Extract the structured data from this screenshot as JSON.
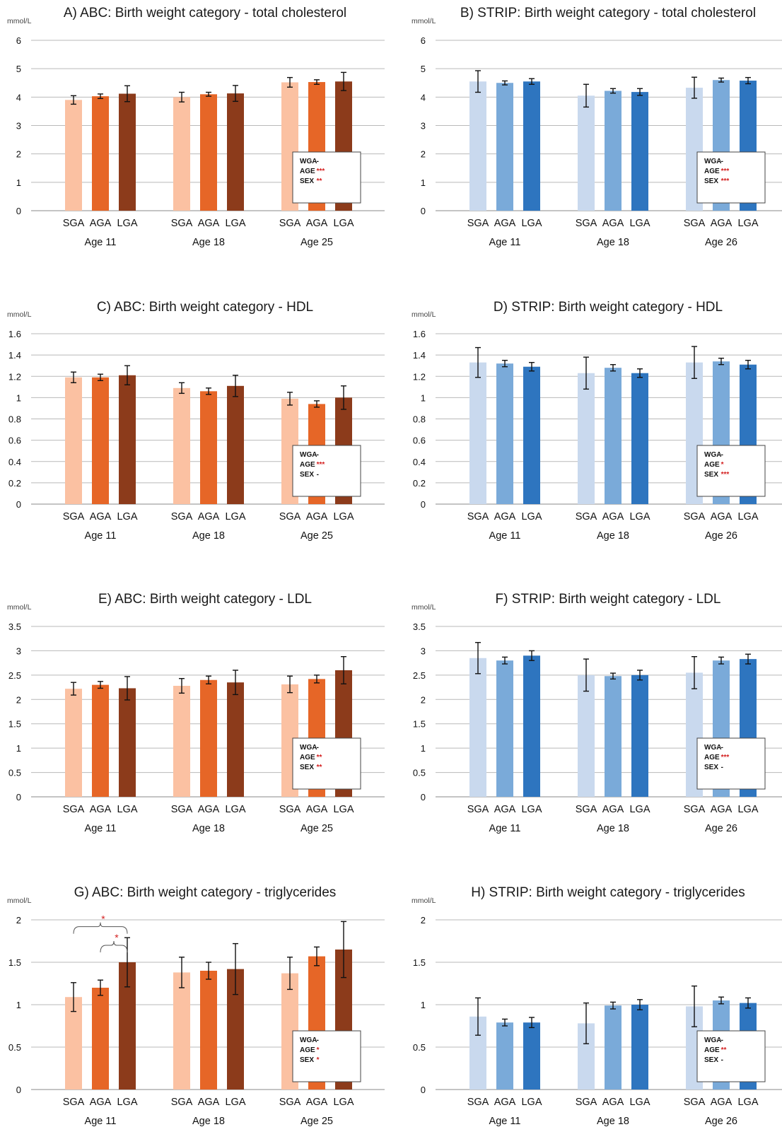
{
  "figure": {
    "colors": {
      "ABC": [
        "#fbc1a2",
        "#e66627",
        "#8c3b1b"
      ],
      "STRIP": [
        "#c9d9ee",
        "#7aaad9",
        "#2e75bf"
      ],
      "significance": "#d42020"
    },
    "box_labels": [
      "WGA",
      "AGA",
      "SEX"
    ]
  },
  "chart_data": [
    {
      "id": "A",
      "type": "bar",
      "title": "A) ABC: Birth weight category - total cholesterol",
      "ylabel": "mmol/L",
      "ylim": [
        0,
        6
      ],
      "yticks": [
        "0",
        "1",
        "2",
        "3",
        "4",
        "5",
        "6"
      ],
      "categories": [
        "SGA",
        "AGA",
        "LGA"
      ],
      "groups": [
        {
          "label": "Age 11",
          "values": [
            3.9,
            4.03,
            4.12
          ],
          "err": [
            0.15,
            0.08,
            0.28
          ]
        },
        {
          "label": "Age 18",
          "values": [
            4.0,
            4.1,
            4.13
          ],
          "err": [
            0.17,
            0.07,
            0.28
          ]
        },
        {
          "label": "Age 25",
          "values": [
            4.52,
            4.53,
            4.55
          ],
          "err": [
            0.17,
            0.08,
            0.32
          ]
        }
      ],
      "grid": true,
      "stats_box": [
        [
          "WGA",
          "-"
        ],
        [
          "AGE",
          "***"
        ],
        [
          "SEX",
          "**"
        ]
      ],
      "brackets": []
    },
    {
      "id": "B",
      "type": "bar",
      "title": "B) STRIP: Birth weight category - total cholesterol",
      "ylabel": "mmol/L",
      "ylim": [
        0,
        6
      ],
      "yticks": [
        "0",
        "1",
        "2",
        "3",
        "4",
        "5",
        "6"
      ],
      "categories": [
        "SGA",
        "AGA",
        "LGA"
      ],
      "groups": [
        {
          "label": "Age 11",
          "values": [
            4.55,
            4.5,
            4.55
          ],
          "err": [
            0.38,
            0.07,
            0.1
          ]
        },
        {
          "label": "Age 18",
          "values": [
            4.05,
            4.22,
            4.18
          ],
          "err": [
            0.4,
            0.08,
            0.12
          ]
        },
        {
          "label": "Age 26",
          "values": [
            4.33,
            4.6,
            4.58
          ],
          "err": [
            0.37,
            0.07,
            0.11
          ]
        }
      ],
      "grid": true,
      "stats_box": [
        [
          "WGA",
          "-"
        ],
        [
          "AGE",
          "***"
        ],
        [
          "SEX",
          "***"
        ]
      ],
      "brackets": []
    },
    {
      "id": "C",
      "type": "bar",
      "title": "C) ABC: Birth weight category - HDL",
      "ylabel": "mmol/L",
      "ylim": [
        0,
        1.6
      ],
      "yticks": [
        "0",
        "0.2",
        "0.4",
        "0.6",
        "0.8",
        "1",
        "1.2",
        "1.4",
        "1.6"
      ],
      "categories": [
        "SGA",
        "AGA",
        "LGA"
      ],
      "groups": [
        {
          "label": "Age 11",
          "values": [
            1.19,
            1.19,
            1.21
          ],
          "err": [
            0.05,
            0.03,
            0.09
          ]
        },
        {
          "label": "Age 18",
          "values": [
            1.09,
            1.06,
            1.11
          ],
          "err": [
            0.05,
            0.03,
            0.1
          ]
        },
        {
          "label": "Age 25",
          "values": [
            0.99,
            0.94,
            1.0
          ],
          "err": [
            0.06,
            0.03,
            0.11
          ]
        }
      ],
      "grid": true,
      "stats_box": [
        [
          "WGA",
          "-"
        ],
        [
          "AGE",
          "***"
        ],
        [
          "SEX",
          "-"
        ]
      ],
      "brackets": []
    },
    {
      "id": "D",
      "type": "bar",
      "title": "D) STRIP: Birth weight category - HDL",
      "ylabel": "mmol/L",
      "ylim": [
        0,
        1.6
      ],
      "yticks": [
        "0",
        "0.2",
        "0.4",
        "0.6",
        "0.8",
        "1",
        "1.2",
        "1.4",
        "1.6"
      ],
      "categories": [
        "SGA",
        "AGA",
        "LGA"
      ],
      "groups": [
        {
          "label": "Age 11",
          "values": [
            1.33,
            1.32,
            1.29
          ],
          "err": [
            0.14,
            0.03,
            0.04
          ]
        },
        {
          "label": "Age 18",
          "values": [
            1.23,
            1.28,
            1.23
          ],
          "err": [
            0.15,
            0.03,
            0.04
          ]
        },
        {
          "label": "Age 26",
          "values": [
            1.33,
            1.34,
            1.31
          ],
          "err": [
            0.15,
            0.03,
            0.04
          ]
        }
      ],
      "grid": true,
      "stats_box": [
        [
          "WGA",
          "-"
        ],
        [
          "AGE",
          "*"
        ],
        [
          "SEX",
          "***"
        ]
      ],
      "brackets": []
    },
    {
      "id": "E",
      "type": "bar",
      "title": "E) ABC: Birth weight category - LDL",
      "ylabel": "mmol/L",
      "ylim": [
        0,
        3.5
      ],
      "yticks": [
        "0",
        "0.5",
        "1",
        "1.5",
        "2",
        "2.5",
        "3",
        "3.5"
      ],
      "categories": [
        "SGA",
        "AGA",
        "LGA"
      ],
      "groups": [
        {
          "label": "Age 11",
          "values": [
            2.22,
            2.3,
            2.23
          ],
          "err": [
            0.13,
            0.07,
            0.24
          ]
        },
        {
          "label": "Age 18",
          "values": [
            2.28,
            2.4,
            2.35
          ],
          "err": [
            0.15,
            0.08,
            0.25
          ]
        },
        {
          "label": "Age 25",
          "values": [
            2.31,
            2.42,
            2.6
          ],
          "err": [
            0.17,
            0.08,
            0.28
          ]
        }
      ],
      "grid": true,
      "stats_box": [
        [
          "WGA",
          "-"
        ],
        [
          "AGE",
          "**"
        ],
        [
          "SEX",
          "**"
        ]
      ],
      "brackets": []
    },
    {
      "id": "F",
      "type": "bar",
      "title": "F) STRIP: Birth weight category - LDL",
      "ylabel": "mmol/L",
      "ylim": [
        0,
        3.5
      ],
      "yticks": [
        "0",
        "0.5",
        "1",
        "1.5",
        "2",
        "2.5",
        "3",
        "3.5"
      ],
      "categories": [
        "SGA",
        "AGA",
        "LGA"
      ],
      "groups": [
        {
          "label": "Age 11",
          "values": [
            2.85,
            2.8,
            2.9
          ],
          "err": [
            0.32,
            0.07,
            0.1
          ]
        },
        {
          "label": "Age 18",
          "values": [
            2.5,
            2.48,
            2.5
          ],
          "err": [
            0.33,
            0.06,
            0.1
          ]
        },
        {
          "label": "Age 26",
          "values": [
            2.55,
            2.8,
            2.83
          ],
          "err": [
            0.33,
            0.07,
            0.1
          ]
        }
      ],
      "grid": true,
      "stats_box": [
        [
          "WGA",
          "-"
        ],
        [
          "AGE",
          "***"
        ],
        [
          "SEX",
          "-"
        ]
      ],
      "brackets": []
    },
    {
      "id": "G",
      "type": "bar",
      "title": "G) ABC: Birth weight category - triglycerides",
      "ylabel": "mmol/L",
      "ylim": [
        0,
        2
      ],
      "yticks": [
        "0",
        "0.5",
        "1",
        "1.5",
        "2"
      ],
      "categories": [
        "SGA",
        "AGA",
        "LGA"
      ],
      "groups": [
        {
          "label": "Age 11",
          "values": [
            1.09,
            1.2,
            1.5
          ],
          "err": [
            0.17,
            0.09,
            0.29
          ]
        },
        {
          "label": "Age 18",
          "values": [
            1.38,
            1.4,
            1.42
          ],
          "err": [
            0.18,
            0.1,
            0.3
          ]
        },
        {
          "label": "Age 25",
          "values": [
            1.37,
            1.57,
            1.65
          ],
          "err": [
            0.19,
            0.11,
            0.33
          ]
        }
      ],
      "grid": true,
      "stats_box": [
        [
          "WGA",
          "-"
        ],
        [
          "AGE",
          "*"
        ],
        [
          "SEX",
          "*"
        ]
      ],
      "brackets": [
        {
          "group": 0,
          "from": 0,
          "to": 2,
          "label": "*",
          "level": 1.92
        },
        {
          "group": 0,
          "from": 1,
          "to": 2,
          "label": "*",
          "level": 1.7
        }
      ]
    },
    {
      "id": "H",
      "type": "bar",
      "title": "H) STRIP: Birth weight category - triglycerides",
      "ylabel": "mmol/L",
      "ylim": [
        0,
        2
      ],
      "yticks": [
        "0",
        "0.5",
        "1",
        "1.5",
        "2"
      ],
      "categories": [
        "SGA",
        "AGA",
        "LGA"
      ],
      "groups": [
        {
          "label": "Age 11",
          "values": [
            0.86,
            0.79,
            0.79
          ],
          "err": [
            0.22,
            0.04,
            0.06
          ]
        },
        {
          "label": "Age 18",
          "values": [
            0.78,
            0.99,
            1.0
          ],
          "err": [
            0.24,
            0.04,
            0.06
          ]
        },
        {
          "label": "Age 26",
          "values": [
            0.98,
            1.05,
            1.02
          ],
          "err": [
            0.24,
            0.04,
            0.06
          ]
        }
      ],
      "grid": true,
      "stats_box": [
        [
          "WGA",
          "-"
        ],
        [
          "AGE",
          "**"
        ],
        [
          "SEX",
          "-"
        ]
      ],
      "brackets": []
    }
  ]
}
